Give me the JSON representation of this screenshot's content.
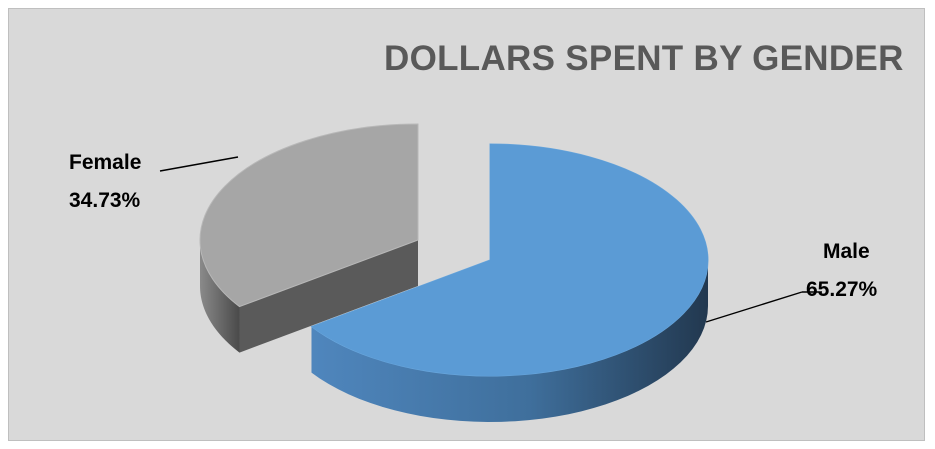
{
  "chart_data": {
    "type": "pie",
    "style": "3d-exploded",
    "title": "DOLLARS SPENT BY GENDER",
    "slices": [
      {
        "label": "Male",
        "value": 65.27,
        "display": "65.27%",
        "color": "#5b9bd5",
        "side_color": "#3f6f9c"
      },
      {
        "label": "Female",
        "value": 34.73,
        "display": "34.73%",
        "color": "#a6a6a6",
        "side_color": "#6b6b6b"
      }
    ],
    "legend": "none",
    "data_labels": "outside-with-leader-lines"
  }
}
